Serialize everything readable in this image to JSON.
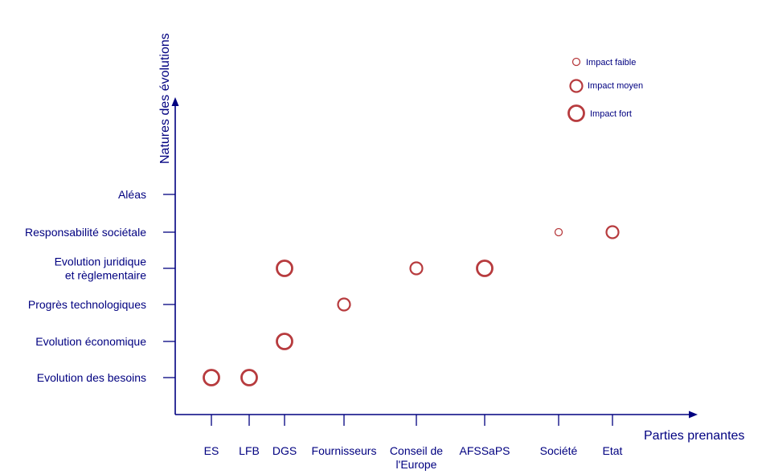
{
  "chart_data": {
    "type": "scatter",
    "xlabel": "Parties prenantes",
    "ylabel": "Natures des évolutions",
    "x_categories": [
      [
        "ES"
      ],
      [
        "LFB"
      ],
      [
        "DGS"
      ],
      [
        "Fournisseurs"
      ],
      [
        "Conseil de",
        "l'Europe"
      ],
      [
        "AFSSaPS"
      ],
      [
        "Société"
      ],
      [
        "Etat"
      ]
    ],
    "y_categories": [
      [
        "Evolution des besoins"
      ],
      [
        "Evolution économique"
      ],
      [
        "Progrès technologiques"
      ],
      [
        "Evolution juridique",
        "et règlementaire"
      ],
      [
        "Responsabilité sociétale"
      ],
      [
        "Aléas"
      ]
    ],
    "legend": [
      {
        "level": "faible",
        "label": "Impact faible"
      },
      {
        "level": "moyen",
        "label": "Impact moyen"
      },
      {
        "level": "fort",
        "label": "Impact fort"
      }
    ],
    "legend_position": "top-right",
    "impact_colors": {
      "stroke": "#b73b3e"
    },
    "axis_color": "#000080",
    "points": [
      {
        "x": "ES",
        "y": "Evolution des besoins",
        "impact": "fort"
      },
      {
        "x": "LFB",
        "y": "Evolution des besoins",
        "impact": "fort"
      },
      {
        "x": "DGS",
        "y": "Evolution économique",
        "impact": "fort"
      },
      {
        "x": "DGS",
        "y": "Evolution juridique et règlementaire",
        "impact": "fort"
      },
      {
        "x": "Fournisseurs",
        "y": "Progrès technologiques",
        "impact": "moyen"
      },
      {
        "x": "Conseil de l'Europe",
        "y": "Evolution juridique et règlementaire",
        "impact": "moyen"
      },
      {
        "x": "AFSSaPS",
        "y": "Evolution juridique et règlementaire",
        "impact": "fort"
      },
      {
        "x": "Société",
        "y": "Responsabilité sociétale",
        "impact": "faible"
      },
      {
        "x": "Etat",
        "y": "Responsabilité sociétale",
        "impact": "moyen"
      }
    ]
  }
}
